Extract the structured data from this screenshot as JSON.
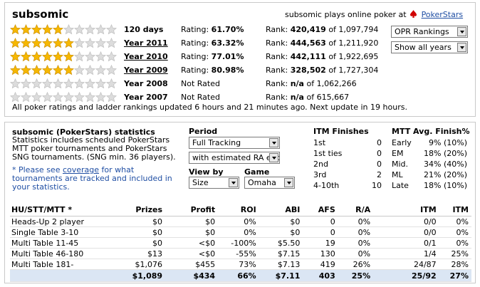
{
  "header": {
    "username": "subsomic",
    "plays_text": "subsomic plays online poker at",
    "site_link": "PokerStars"
  },
  "rating_rows": [
    {
      "stars": 5,
      "label": "120 days",
      "linked": false,
      "rating_prefix": "Rating:",
      "rating_value": "61.70%",
      "rank_prefix": "Rank:",
      "rank_value": "420,419",
      "rank_total": "of 1,097,794"
    },
    {
      "stars": 6,
      "label": "Year 2011",
      "linked": true,
      "rating_prefix": "Rating:",
      "rating_value": "63.32%",
      "rank_prefix": "Rank:",
      "rank_value": "444,563",
      "rank_total": "of 1,211,920"
    },
    {
      "stars": 6,
      "label": "Year 2010",
      "linked": true,
      "rating_prefix": "Rating:",
      "rating_value": "77.01%",
      "rank_prefix": "Rank:",
      "rank_value": "442,111",
      "rank_total": "of 1,922,695"
    },
    {
      "stars": 6,
      "label": "Year 2009",
      "linked": true,
      "rating_prefix": "Rating:",
      "rating_value": "80.98%",
      "rank_prefix": "Rank:",
      "rank_value": "328,502",
      "rank_total": "of 1,727,304"
    },
    {
      "stars": 0,
      "label": "Year 2008",
      "linked": false,
      "rating_prefix": "Not Rated",
      "rating_value": "",
      "rank_prefix": "Rank:",
      "rank_value": "n/a",
      "rank_total": "of 1,062,266"
    },
    {
      "stars": 0,
      "label": "Year 2007",
      "linked": false,
      "rating_prefix": "Not Rated",
      "rating_value": "",
      "rank_prefix": "Rank:",
      "rank_value": "n/a",
      "rank_total": "of 615,667"
    }
  ],
  "selects": {
    "opr": "OPR Rankings",
    "years": "Show all years"
  },
  "update_note": "All poker ratings and ladder rankings updated 6 hours and 21 minutes ago. Next update in 19 hours.",
  "stats": {
    "title": "subsomic (PokerStars) statistics",
    "description": "Statistics includes scheduled PokerStars MTT poker tournaments and PokerStars SNG tournaments. (SNG min. 36 players).",
    "coverage_pre": "* Please see",
    "coverage_link": "coverage",
    "coverage_post": "for what tournaments are tracked and included in your statistics.",
    "period_label": "Period",
    "period_value": "Full Tracking",
    "ra_value": "with estimated RA expe",
    "viewby_label": "View by",
    "viewby_value": "Size",
    "game_label": "Game",
    "game_value": "Omaha"
  },
  "itm_finishes": {
    "title": "ITM Finishes",
    "rows": [
      {
        "label": "1st",
        "value": "0"
      },
      {
        "label": "1st ties",
        "value": "0"
      },
      {
        "label": "2nd",
        "value": "0"
      },
      {
        "label": "3rd",
        "value": "2"
      },
      {
        "label": "4-10th",
        "value": "10"
      }
    ]
  },
  "mtt_avg": {
    "title": "MTT Avg. Finish%",
    "rows": [
      {
        "label": "Early",
        "value": "9% (10%)"
      },
      {
        "label": "EM",
        "value": "18% (20%)"
      },
      {
        "label": "Mid.",
        "value": "34% (40%)"
      },
      {
        "label": "ML",
        "value": "21% (20%)"
      },
      {
        "label": "Late",
        "value": "18% (10%)"
      }
    ]
  },
  "table": {
    "headers": [
      "HU/STT/MTT *",
      "Prizes",
      "Profit",
      "ROI",
      "ABI",
      "AFS",
      "R/A",
      "ITM",
      "ITM"
    ],
    "rows": [
      [
        "Heads-Up 2 player",
        "$0",
        "$0",
        "0%",
        "$0",
        "0",
        "0%",
        "0/0",
        "0%"
      ],
      [
        "Single Table 3-10",
        "$0",
        "$0",
        "0%",
        "$0",
        "0",
        "0%",
        "0/0",
        "0%"
      ],
      [
        "Multi Table 11-45",
        "$0",
        "<$0",
        "-100%",
        "$5.50",
        "19",
        "0%",
        "0/1",
        "0%"
      ],
      [
        "Multi Table 46-180",
        "$13",
        "<$0",
        "-55%",
        "$7.15",
        "130",
        "0%",
        "1/4",
        "25%"
      ],
      [
        "Multi Table 181-",
        "$1,076",
        "$455",
        "73%",
        "$7.13",
        "419",
        "26%",
        "24/87",
        "28%"
      ]
    ],
    "total": [
      "",
      "$1,089",
      "$434",
      "66%",
      "$7.11",
      "403",
      "25%",
      "25/92",
      "27%"
    ]
  },
  "colors": {
    "star_fill": "#f6b800",
    "star_empty": "#dcdcdc",
    "link": "#1f4ea3",
    "total_bg": "#dbe6f4"
  }
}
